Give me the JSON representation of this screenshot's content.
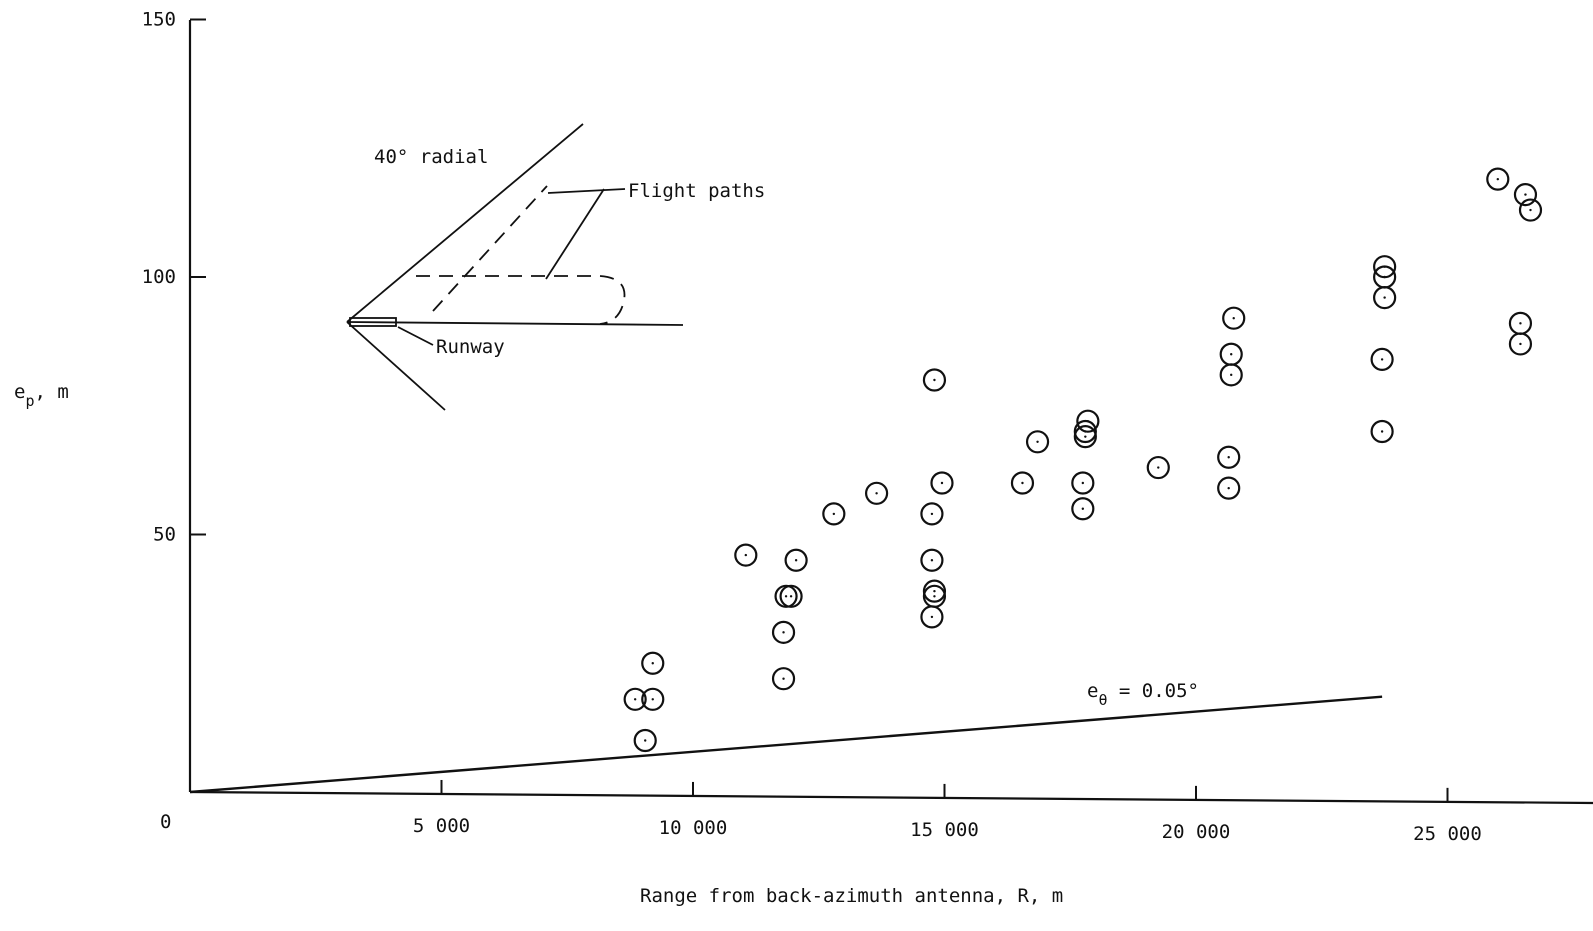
{
  "chart_data": {
    "type": "scatter",
    "title": "",
    "xlabel": "Range from back-azimuth antenna, R, m",
    "ylabel_main": "e",
    "ylabel_sub": "p",
    "ylabel_suffix": ", m",
    "xlim": [
      0,
      27500
    ],
    "ylim": [
      0,
      150
    ],
    "x_ticks": [
      5000,
      10000,
      15000,
      20000,
      25000
    ],
    "x_tick_labels": [
      "5 000",
      "10 000",
      "15 000",
      "20 000",
      "25 000"
    ],
    "y_ticks": [
      50,
      100,
      150
    ],
    "y_tick_labels": [
      "50",
      "100",
      "150"
    ],
    "origin_label": "0",
    "grid": false,
    "series": [
      {
        "marker": "open-circle",
        "x": [
          8850,
          9050,
          9200,
          9200,
          11050,
          11800,
          11800,
          11850,
          11950,
          12050,
          12800,
          13650,
          14750,
          14750,
          14750,
          14800,
          14800,
          14800,
          14950,
          16550,
          16850,
          17750,
          17750,
          17800,
          17800,
          17850,
          19250,
          20650,
          20650,
          20700,
          20700,
          20750,
          23700,
          23700,
          23750,
          23750,
          23750,
          26000,
          26450,
          26450,
          26550,
          26650
        ],
        "y": [
          18,
          10,
          25,
          18,
          46,
          22,
          31,
          38,
          38,
          45,
          54,
          58,
          34,
          45,
          54,
          80,
          38,
          39,
          60,
          60,
          68,
          55,
          60,
          69,
          70,
          72,
          63,
          59,
          65,
          81,
          85,
          92,
          70,
          84,
          96,
          100,
          102,
          119,
          87,
          91,
          116,
          113
        ]
      }
    ],
    "reference_line": {
      "label_main": "e",
      "label_sub": "θ",
      "label_suffix": " = 0.05°",
      "x": [
        0,
        23700
      ],
      "y": [
        0,
        18.5
      ]
    }
  },
  "inset": {
    "radial_label": "40° radial",
    "flight_paths_label": "Flight paths",
    "runway_label": "Runway"
  }
}
